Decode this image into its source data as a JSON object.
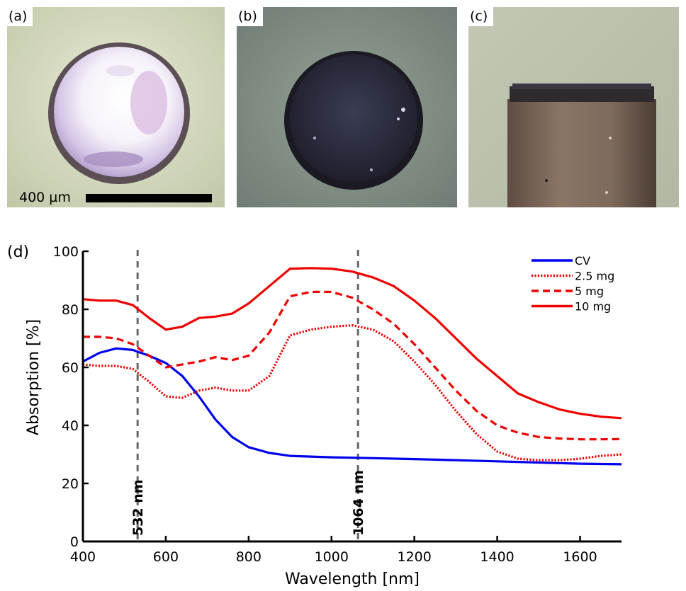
{
  "panels": {
    "a": {
      "label": "(a)",
      "scale_label": "400 µm"
    },
    "b": {
      "label": "(b)"
    },
    "c": {
      "label": "(c)"
    },
    "d": {
      "label": "(d)"
    }
  },
  "colors": {
    "cv": "#0000ee",
    "red": "#ee0000",
    "guide": "#666666"
  },
  "chart_data": {
    "type": "line",
    "xlabel": "Wavelength [nm]",
    "ylabel": "Absorption [%]",
    "xlim": [
      400,
      1700
    ],
    "ylim": [
      0,
      100
    ],
    "xticks": [
      400,
      600,
      800,
      1000,
      1200,
      1400,
      1600
    ],
    "yticks": [
      0,
      20,
      40,
      60,
      80,
      100
    ],
    "grid": false,
    "legend_position": "top-right",
    "annotations": [
      {
        "x": 532,
        "label": "532 nm"
      },
      {
        "x": 1064,
        "label": "1064 nm"
      }
    ],
    "series": [
      {
        "name": "CV",
        "style": "solid",
        "color": "#0000ee",
        "x": [
          400,
          440,
          480,
          520,
          560,
          600,
          640,
          680,
          720,
          760,
          800,
          850,
          900,
          1000,
          1100,
          1200,
          1300,
          1400,
          1500,
          1600,
          1700
        ],
        "y": [
          62,
          65,
          66.5,
          66,
          64,
          61.5,
          57,
          50,
          42,
          36,
          32.5,
          30.5,
          29.5,
          29,
          28.7,
          28.4,
          28,
          27.6,
          27.2,
          26.8,
          26.6
        ]
      },
      {
        "name": "2.5 mg",
        "style": "dotted",
        "color": "#ee0000",
        "x": [
          400,
          440,
          480,
          520,
          560,
          600,
          640,
          680,
          720,
          760,
          800,
          850,
          900,
          950,
          1000,
          1050,
          1100,
          1150,
          1200,
          1250,
          1300,
          1350,
          1400,
          1450,
          1500,
          1550,
          1600,
          1650,
          1700
        ],
        "y": [
          61,
          60.5,
          60.5,
          59.5,
          55,
          50,
          49.5,
          52,
          53,
          52,
          52,
          57,
          71,
          73,
          74,
          74.5,
          73,
          69,
          62,
          54,
          45,
          37,
          31,
          28.5,
          28,
          28,
          28.5,
          29.5,
          30
        ]
      },
      {
        "name": "5 mg",
        "style": "dashed",
        "color": "#ee0000",
        "x": [
          400,
          440,
          480,
          520,
          560,
          600,
          640,
          680,
          720,
          760,
          800,
          850,
          900,
          950,
          1000,
          1050,
          1100,
          1150,
          1200,
          1250,
          1300,
          1350,
          1400,
          1450,
          1500,
          1550,
          1600,
          1650,
          1700
        ],
        "y": [
          70.5,
          70.5,
          70,
          68,
          64,
          60,
          61,
          62,
          63.5,
          62.5,
          64,
          72,
          84.5,
          86,
          86,
          84,
          80,
          75,
          68,
          60,
          52,
          45,
          40,
          37.5,
          36,
          35.5,
          35.2,
          35.2,
          35.3
        ]
      },
      {
        "name": "10 mg",
        "style": "solid",
        "color": "#ee0000",
        "x": [
          400,
          440,
          480,
          520,
          560,
          600,
          640,
          680,
          720,
          760,
          800,
          850,
          900,
          950,
          1000,
          1050,
          1100,
          1150,
          1200,
          1250,
          1300,
          1350,
          1400,
          1450,
          1500,
          1550,
          1600,
          1650,
          1700
        ],
        "y": [
          83.5,
          83,
          83,
          81.5,
          77,
          73,
          74,
          77,
          77.5,
          78.5,
          82,
          88,
          94,
          94.2,
          94,
          93,
          91,
          88,
          83,
          77,
          70,
          63,
          57,
          51,
          48,
          45.5,
          44,
          43,
          42.5
        ]
      }
    ]
  }
}
